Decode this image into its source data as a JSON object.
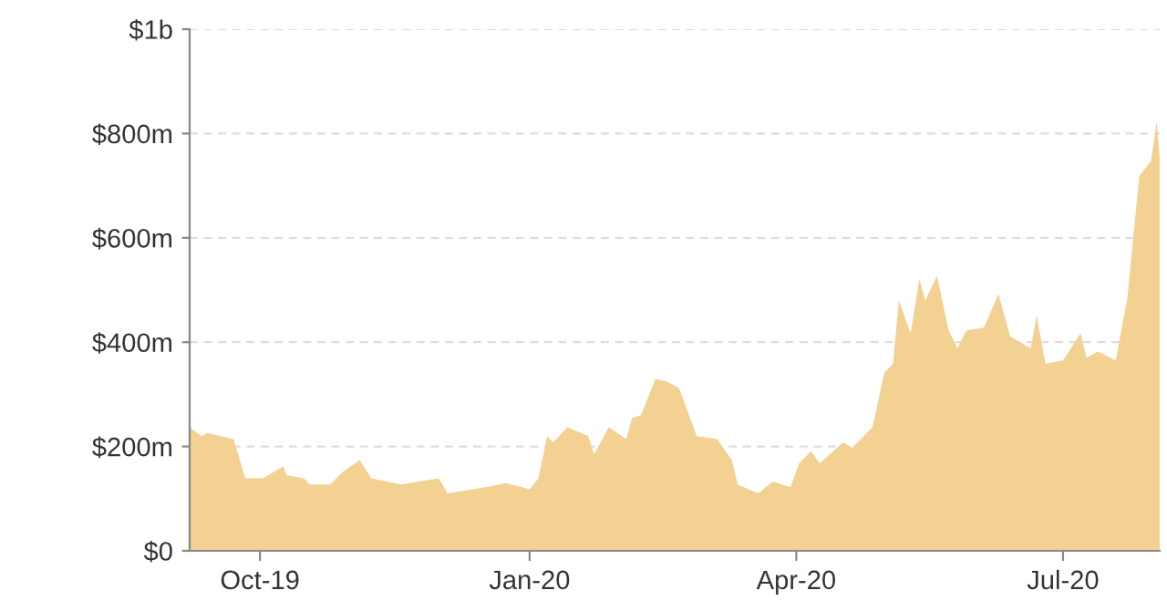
{
  "chart_data": {
    "type": "area",
    "x": [
      "2019-09-07",
      "2019-09-11",
      "2019-09-13",
      "2019-09-22",
      "2019-09-26",
      "2019-10-02",
      "2019-10-09",
      "2019-10-10",
      "2019-10-16",
      "2019-10-18",
      "2019-10-25",
      "2019-10-29",
      "2019-11-04",
      "2019-11-08",
      "2019-11-18",
      "2019-12-01",
      "2019-12-04",
      "2019-12-17",
      "2019-12-24",
      "2020-01-01",
      "2020-01-04",
      "2020-01-07",
      "2020-01-09",
      "2020-01-14",
      "2020-01-21",
      "2020-01-23",
      "2020-01-28",
      "2020-02-03",
      "2020-02-05",
      "2020-02-08",
      "2020-02-13",
      "2020-02-17",
      "2020-02-21",
      "2020-02-27",
      "2020-03-05",
      "2020-03-10",
      "2020-03-12",
      "2020-03-19",
      "2020-03-24",
      "2020-03-30",
      "2020-04-02",
      "2020-04-06",
      "2020-04-09",
      "2020-04-17",
      "2020-04-20",
      "2020-04-27",
      "2020-05-01",
      "2020-05-04",
      "2020-05-06",
      "2020-05-10",
      "2020-05-13",
      "2020-05-15",
      "2020-05-19",
      "2020-05-23",
      "2020-05-26",
      "2020-05-29",
      "2020-06-04",
      "2020-06-09",
      "2020-06-13",
      "2020-06-20",
      "2020-06-22",
      "2020-06-25",
      "2020-07-01",
      "2020-07-07",
      "2020-07-09",
      "2020-07-13",
      "2020-07-19",
      "2020-07-23",
      "2020-07-27",
      "2020-07-31",
      "2020-08-02",
      "2020-08-03"
    ],
    "series": [
      {
        "color": "#f2d192",
        "values": [
          237000000,
          220000000,
          226000000,
          214000000,
          139000000,
          139000000,
          162000000,
          145000000,
          139000000,
          127000000,
          127000000,
          150000000,
          174000000,
          139000000,
          127000000,
          139000000,
          110000000,
          122000000,
          130000000,
          118000000,
          139000000,
          220000000,
          208000000,
          237000000,
          220000000,
          185000000,
          237000000,
          214000000,
          255000000,
          260000000,
          330000000,
          324000000,
          312000000,
          220000000,
          214000000,
          174000000,
          127000000,
          110000000,
          133000000,
          122000000,
          168000000,
          191000000,
          168000000,
          208000000,
          197000000,
          237000000,
          341000000,
          359000000,
          480000000,
          417000000,
          521000000,
          480000000,
          527000000,
          422000000,
          388000000,
          422000000,
          428000000,
          492000000,
          411000000,
          388000000,
          451000000,
          359000000,
          365000000,
          417000000,
          370000000,
          382000000,
          365000000,
          486000000,
          718000000,
          747000000,
          822000000,
          752000000
        ]
      }
    ],
    "xlim": [
      "2019-09-07",
      "2020-08-03"
    ],
    "xticks": [
      {
        "value": "2019-10-01",
        "label": "Oct-19"
      },
      {
        "value": "2020-01-01",
        "label": "Jan-20"
      },
      {
        "value": "2020-04-01",
        "label": "Apr-20"
      },
      {
        "value": "2020-07-01",
        "label": "Jul-20"
      }
    ],
    "ylim": [
      0,
      1000000000
    ],
    "yticks": [
      {
        "value": 0,
        "label": "$0"
      },
      {
        "value": 200000000,
        "label": "$200m"
      },
      {
        "value": 400000000,
        "label": "$400m"
      },
      {
        "value": 600000000,
        "label": "$600m"
      },
      {
        "value": 800000000,
        "label": "$800m"
      },
      {
        "value": 1000000000,
        "label": "$1b"
      }
    ],
    "grid": "y"
  }
}
